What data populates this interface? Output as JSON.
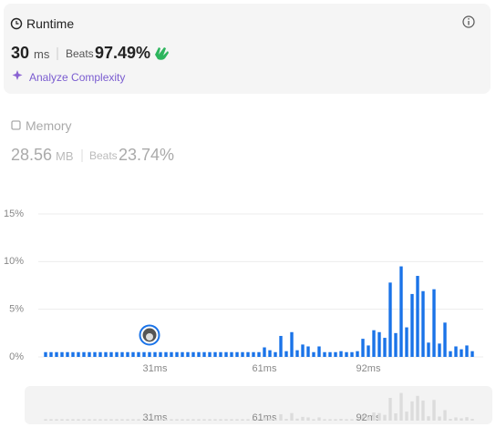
{
  "runtime": {
    "title": "Runtime",
    "value": "30",
    "unit": "ms",
    "beats_label": "Beats",
    "beats": "97.49%",
    "link": "Analyze Complexity"
  },
  "memory": {
    "title": "Memory",
    "value": "28.56",
    "unit": "MB",
    "beats_label": "Beats",
    "beats": "23.74%"
  },
  "chart_data": {
    "type": "bar",
    "categories": [
      null,
      null,
      null,
      null,
      null,
      null,
      null,
      null,
      null,
      null,
      null,
      null,
      null,
      null,
      null,
      null,
      null,
      null,
      null,
      null,
      "31ms",
      null,
      null,
      null,
      null,
      null,
      null,
      null,
      null,
      null,
      null,
      null,
      null,
      null,
      null,
      null,
      null,
      null,
      null,
      null,
      "61ms",
      null,
      null,
      null,
      null,
      null,
      null,
      null,
      null,
      null,
      null,
      null,
      null,
      null,
      null,
      null,
      null,
      null,
      null,
      "92ms",
      null,
      null,
      null,
      null,
      null,
      null,
      null,
      null,
      null,
      null,
      null,
      null,
      null,
      null,
      null,
      null,
      null,
      null,
      null
    ],
    "values": [
      0.5,
      0.5,
      0.5,
      0.5,
      0.5,
      0.5,
      0.5,
      0.5,
      0.5,
      0.5,
      0.5,
      0.5,
      0.5,
      0.5,
      0.5,
      0.5,
      0.5,
      0.5,
      0.5,
      0.5,
      0.5,
      0.5,
      0.5,
      0.5,
      0.5,
      0.5,
      0.5,
      0.5,
      0.5,
      0.5,
      0.5,
      0.5,
      0.5,
      0.5,
      0.5,
      0.5,
      0.5,
      0.5,
      0.5,
      0.5,
      1.0,
      0.7,
      0.5,
      2.2,
      0.6,
      2.6,
      0.7,
      1.3,
      1.1,
      0.5,
      1.1,
      0.5,
      0.5,
      0.5,
      0.6,
      0.5,
      0.5,
      0.6,
      1.9,
      1.2,
      2.8,
      2.6,
      2.0,
      7.8,
      2.5,
      9.5,
      3.1,
      6.6,
      8.5,
      6.9,
      1.5,
      7.1,
      1.4,
      3.6,
      0.6,
      1.1,
      0.8,
      1.2,
      0.6
    ],
    "color": "#1a73e8",
    "ylim": [
      0,
      15
    ],
    "yticks": [
      {
        "value": 0,
        "label": "0%"
      },
      {
        "value": 5,
        "label": "5%"
      },
      {
        "value": 10,
        "label": "10%"
      },
      {
        "value": 15,
        "label": "15%"
      }
    ],
    "grid": true
  }
}
